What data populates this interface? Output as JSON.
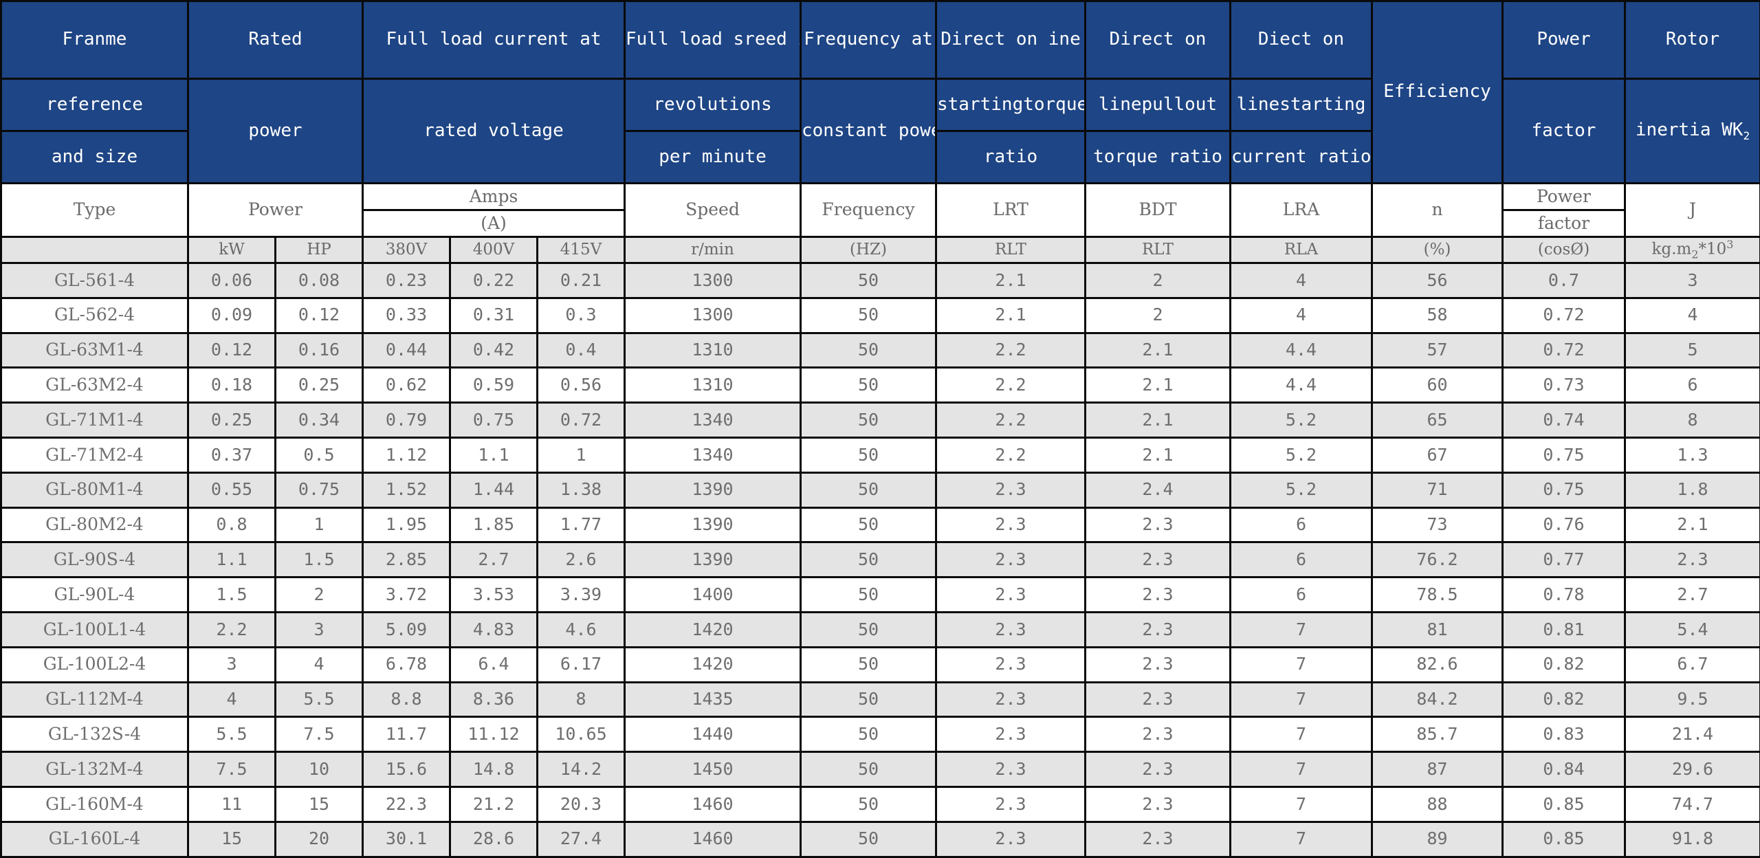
{
  "header": {
    "frame_1": "Franme",
    "frame_2": "reference",
    "frame_3": "and size",
    "rated_1": "Rated",
    "rated_2": "power",
    "current_1": "Full load current at",
    "current_2": "rated voltage",
    "speed_1": "Full load sreed in",
    "speed_2": "revolutions",
    "speed_3": "per minute",
    "freq_1": "Frequency at",
    "freq_2": "constant power",
    "start_torque_1": "Direct on ine",
    "start_torque_2": "startingtorque",
    "start_torque_3": "ratio",
    "pullout_1": "Direct on",
    "pullout_2": "linepullout",
    "pullout_3": "torque ratio",
    "start_current_1": "Diect on",
    "start_current_2": "linestarting",
    "start_current_3": "current ratio",
    "efficiency": "Efficiency",
    "pf_1": "Power",
    "pf_2": "factor",
    "inertia_1": "Rotor",
    "inertia_2": "inertia WK",
    "inertia_2_sub": "2"
  },
  "subheader": {
    "type": "Type",
    "power": "Power",
    "amps": "Amps",
    "amps_unit": "(A)",
    "speed": "Speed",
    "frequency": "Frequency",
    "lrt": "LRT",
    "bdt": "BDT",
    "lra": "LRA",
    "n": "n",
    "pf_1": "Power",
    "pf_2": "factor",
    "j": "J"
  },
  "units": {
    "kw": "kW",
    "hp": "HP",
    "v380": "380V",
    "v400": "400V",
    "v415": "415V",
    "rmin": "r/min",
    "hz": "(HZ)",
    "rlt1": "RLT",
    "rlt2": "RLT",
    "rla": "RLA",
    "pct": "(%)",
    "cos": "(cosØ)",
    "kgm_a": "kg.m",
    "kgm_sub": "2",
    "kgm_b": "*10",
    "kgm_sup": "3"
  },
  "rows": [
    [
      "GL-561-4",
      "0.06",
      "0.08",
      "0.23",
      "0.22",
      "0.21",
      "1300",
      "50",
      "2.1",
      "2",
      "4",
      "56",
      "0.7",
      "3"
    ],
    [
      "GL-562-4",
      "0.09",
      "0.12",
      "0.33",
      "0.31",
      "0.3",
      "1300",
      "50",
      "2.1",
      "2",
      "4",
      "58",
      "0.72",
      "4"
    ],
    [
      "GL-63M1-4",
      "0.12",
      "0.16",
      "0.44",
      "0.42",
      "0.4",
      "1310",
      "50",
      "2.2",
      "2.1",
      "4.4",
      "57",
      "0.72",
      "5"
    ],
    [
      "GL-63M2-4",
      "0.18",
      "0.25",
      "0.62",
      "0.59",
      "0.56",
      "1310",
      "50",
      "2.2",
      "2.1",
      "4.4",
      "60",
      "0.73",
      "6"
    ],
    [
      "GL-71M1-4",
      "0.25",
      "0.34",
      "0.79",
      "0.75",
      "0.72",
      "1340",
      "50",
      "2.2",
      "2.1",
      "5.2",
      "65",
      "0.74",
      "8"
    ],
    [
      "GL-71M2-4",
      "0.37",
      "0.5",
      "1.12",
      "1.1",
      "1",
      "1340",
      "50",
      "2.2",
      "2.1",
      "5.2",
      "67",
      "0.75",
      "1.3"
    ],
    [
      "GL-80M1-4",
      "0.55",
      "0.75",
      "1.52",
      "1.44",
      "1.38",
      "1390",
      "50",
      "2.3",
      "2.4",
      "5.2",
      "71",
      "0.75",
      "1.8"
    ],
    [
      "GL-80M2-4",
      "0.8",
      "1",
      "1.95",
      "1.85",
      "1.77",
      "1390",
      "50",
      "2.3",
      "2.3",
      "6",
      "73",
      "0.76",
      "2.1"
    ],
    [
      "GL-90S-4",
      "1.1",
      "1.5",
      "2.85",
      "2.7",
      "2.6",
      "1390",
      "50",
      "2.3",
      "2.3",
      "6",
      "76.2",
      "0.77",
      "2.3"
    ],
    [
      "GL-90L-4",
      "1.5",
      "2",
      "3.72",
      "3.53",
      "3.39",
      "1400",
      "50",
      "2.3",
      "2.3",
      "6",
      "78.5",
      "0.78",
      "2.7"
    ],
    [
      "GL-100L1-4",
      "2.2",
      "3",
      "5.09",
      "4.83",
      "4.6",
      "1420",
      "50",
      "2.3",
      "2.3",
      "7",
      "81",
      "0.81",
      "5.4"
    ],
    [
      "GL-100L2-4",
      "3",
      "4",
      "6.78",
      "6.4",
      "6.17",
      "1420",
      "50",
      "2.3",
      "2.3",
      "7",
      "82.6",
      "0.82",
      "6.7"
    ],
    [
      "GL-112M-4",
      "4",
      "5.5",
      "8.8",
      "8.36",
      "8",
      "1435",
      "50",
      "2.3",
      "2.3",
      "7",
      "84.2",
      "0.82",
      "9.5"
    ],
    [
      "GL-132S-4",
      "5.5",
      "7.5",
      "11.7",
      "11.12",
      "10.65",
      "1440",
      "50",
      "2.3",
      "2.3",
      "7",
      "85.7",
      "0.83",
      "21.4"
    ],
    [
      "GL-132M-4",
      "7.5",
      "10",
      "15.6",
      "14.8",
      "14.2",
      "1450",
      "50",
      "2.3",
      "2.3",
      "7",
      "87",
      "0.84",
      "29.6"
    ],
    [
      "GL-160M-4",
      "11",
      "15",
      "22.3",
      "21.2",
      "20.3",
      "1460",
      "50",
      "2.3",
      "2.3",
      "7",
      "88",
      "0.85",
      "74.7"
    ],
    [
      "GL-160L-4",
      "15",
      "20",
      "30.1",
      "28.6",
      "27.4",
      "1460",
      "50",
      "2.3",
      "2.3",
      "7",
      "89",
      "0.85",
      "91.8"
    ]
  ],
  "colors": {
    "header_bg": "#1e4585",
    "header_text": "#ffffff",
    "shaded_row": "#e4e4e4",
    "body_text": "#6e6e6e"
  }
}
